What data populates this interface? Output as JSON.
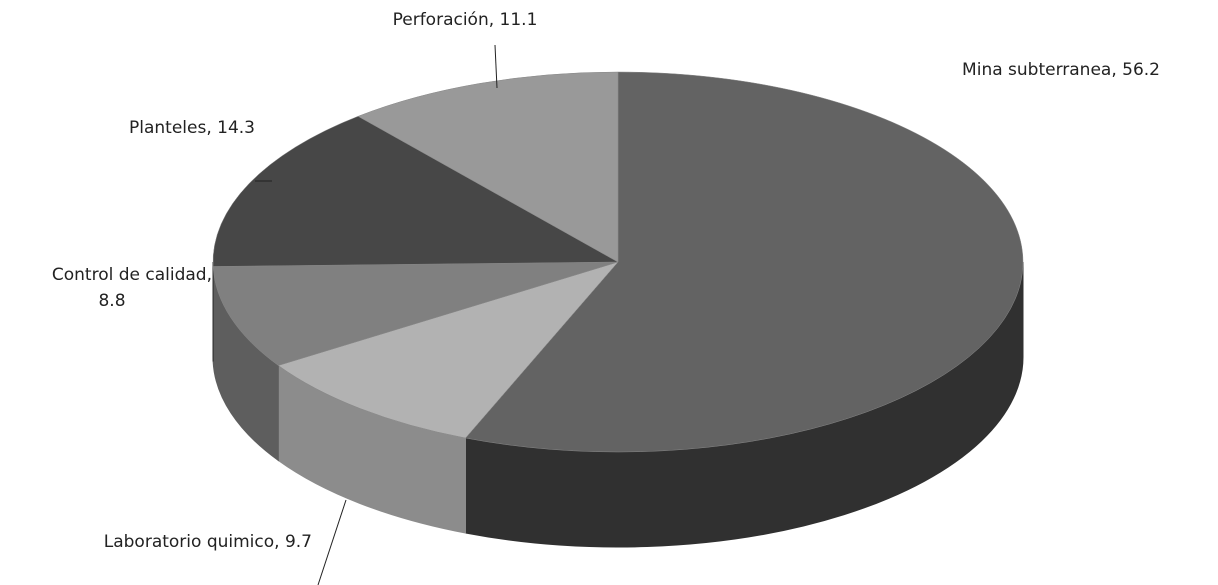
{
  "chart_data": {
    "type": "pie",
    "style": "3d",
    "categories": [
      "Mina subterranea",
      "Laboratorio quimico",
      "Control de calidad",
      "Planteles",
      "Perforación"
    ],
    "values": [
      56.2,
      9.7,
      8.8,
      14.3,
      11.1
    ],
    "label_separator": ", ",
    "colors": [
      "#636363",
      "#b2b2b2",
      "#808080",
      "#474747",
      "#999999"
    ],
    "side_colors": [
      "#303030",
      "#8c8c8c",
      "#5e5e5e",
      "#2e2e2e",
      "#777777"
    ]
  }
}
